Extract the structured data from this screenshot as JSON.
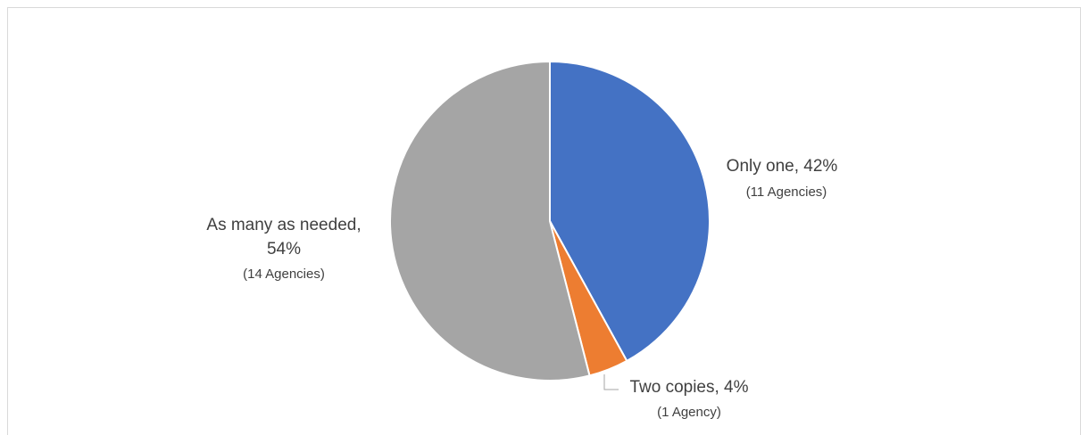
{
  "chart_data": {
    "type": "pie",
    "title": "",
    "slices": [
      {
        "category": "Only one",
        "percent": 42,
        "value": 11,
        "percent_text": "42%",
        "count_text": "(11 Agencies)",
        "color": "#4472c4"
      },
      {
        "category": "Two copies",
        "percent": 4,
        "value": 1,
        "percent_text": "4%",
        "count_text": "(1 Agency)",
        "color": "#ed7d31"
      },
      {
        "category": "As many as needed",
        "percent": 54,
        "value": 14,
        "percent_text": "54%",
        "count_text": "(14 Agencies)",
        "color": "#a5a5a5"
      }
    ]
  },
  "labels": {
    "only_one_line1": "Only one, 42%",
    "only_one_line2": "(11 Agencies)",
    "two_copies_line1": "Two copies, 4%",
    "two_copies_line2": "(1 Agency)",
    "as_many_line1": "As many as needed,",
    "as_many_line2": "54%",
    "as_many_line3": "(14 Agencies)"
  },
  "colors": {
    "frame_border": "#d9d9d9",
    "label_text": "#404040",
    "leader_line": "#a6a6a6"
  }
}
